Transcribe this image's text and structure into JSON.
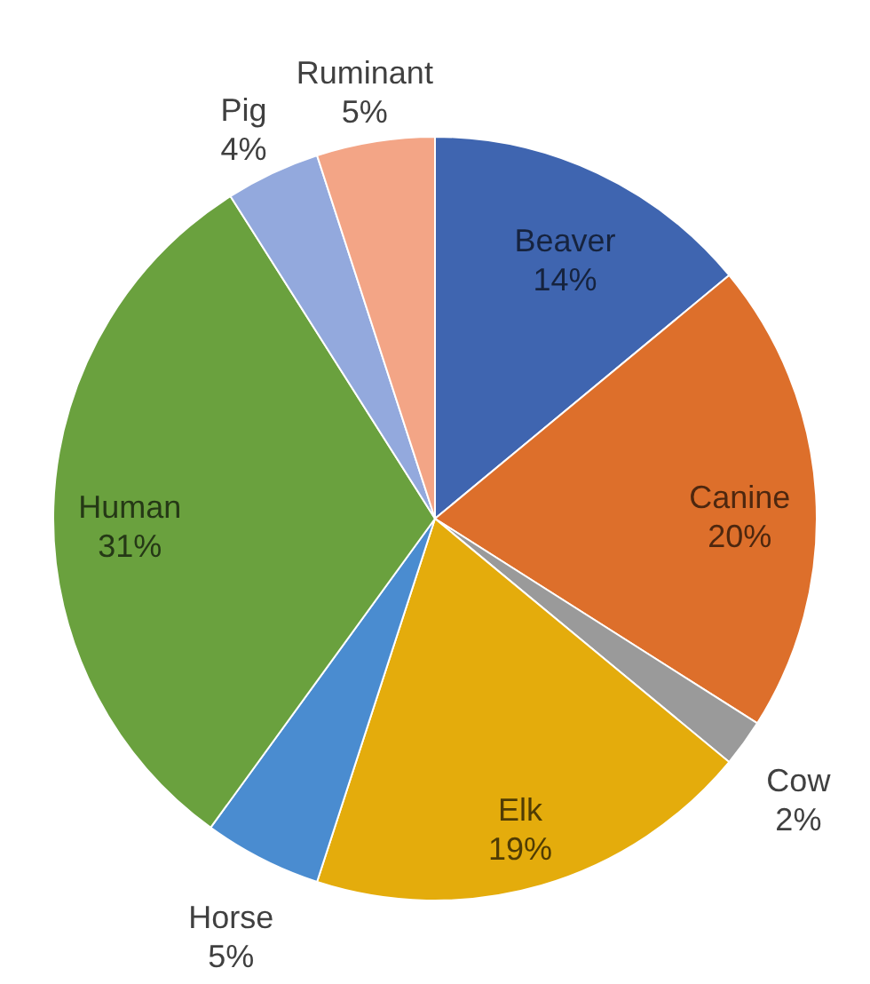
{
  "chart_data": {
    "type": "pie",
    "categories": [
      "Beaver",
      "Canine",
      "Cow",
      "Elk",
      "Horse",
      "Human",
      "Pig",
      "Ruminant"
    ],
    "values": [
      14,
      20,
      2,
      19,
      5,
      31,
      4,
      5
    ],
    "value_labels": [
      "14%",
      "20%",
      "2%",
      "19%",
      "5%",
      "31%",
      "4%",
      "5%"
    ],
    "colors": [
      "#3f65b0",
      "#dd6f2b",
      "#9a9a9a",
      "#e4ac0c",
      "#4a8cd0",
      "#6aa13e",
      "#93a9dd",
      "#f3a586"
    ]
  }
}
